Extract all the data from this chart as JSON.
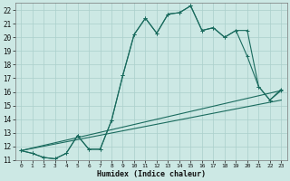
{
  "xlabel": "Humidex (Indice chaleur)",
  "bg_color": "#cce8e4",
  "grid_color": "#aacfcb",
  "line_color": "#1a6b5e",
  "xlim": [
    -0.5,
    23.5
  ],
  "ylim": [
    11,
    22.5
  ],
  "xticks": [
    0,
    1,
    2,
    3,
    4,
    5,
    6,
    7,
    8,
    9,
    10,
    11,
    12,
    13,
    14,
    15,
    16,
    17,
    18,
    19,
    20,
    21,
    22,
    23
  ],
  "yticks": [
    11,
    12,
    13,
    14,
    15,
    16,
    17,
    18,
    19,
    20,
    21,
    22
  ],
  "series_marked1": {
    "x": [
      0,
      1,
      2,
      3,
      4,
      5,
      6,
      7,
      8,
      9,
      10,
      11,
      12,
      13,
      14,
      15,
      16,
      17,
      18,
      19,
      20,
      21,
      22,
      23
    ],
    "y": [
      11.7,
      11.5,
      11.2,
      11.1,
      11.5,
      12.8,
      11.8,
      11.8,
      13.9,
      17.2,
      20.2,
      21.4,
      20.3,
      21.7,
      21.8,
      22.3,
      20.5,
      20.7,
      20.0,
      20.5,
      18.6,
      16.4,
      15.4,
      16.2
    ]
  },
  "series_marked2": {
    "x": [
      0,
      1,
      2,
      3,
      4,
      5,
      6,
      7,
      8,
      9,
      10,
      11,
      12,
      13,
      14,
      15,
      16,
      17,
      18,
      19,
      20,
      21,
      22,
      23
    ],
    "y": [
      11.7,
      11.5,
      11.2,
      11.1,
      11.5,
      12.8,
      11.8,
      11.8,
      13.9,
      17.2,
      20.2,
      21.4,
      20.3,
      21.7,
      21.8,
      22.3,
      20.5,
      20.7,
      20.0,
      20.5,
      20.5,
      16.4,
      15.4,
      16.1
    ]
  },
  "line1": {
    "x": [
      0,
      23
    ],
    "y": [
      11.7,
      16.1
    ]
  },
  "line2": {
    "x": [
      0,
      23
    ],
    "y": [
      11.7,
      15.4
    ]
  }
}
